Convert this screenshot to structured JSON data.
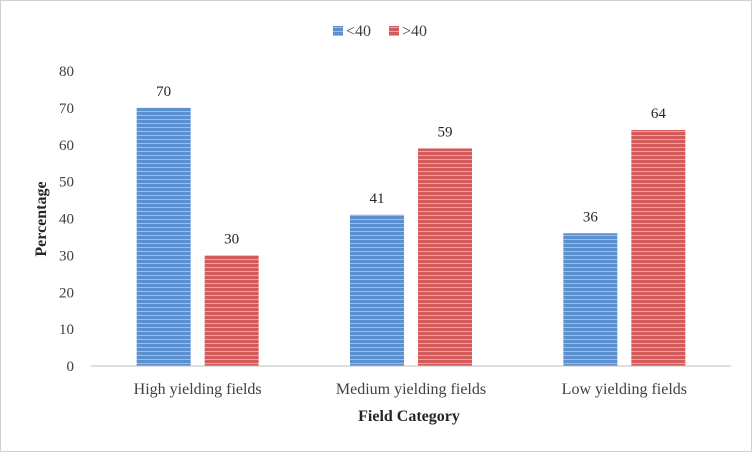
{
  "chart_data": {
    "type": "bar",
    "title": "",
    "xlabel": "Field Category",
    "ylabel": "Percentage",
    "categories": [
      "High yielding fields",
      "Medium yielding fields",
      "Low yielding fields"
    ],
    "series": [
      {
        "name": "<40",
        "values": [
          70,
          41,
          36
        ],
        "color": "#5b8fd0"
      },
      {
        "name": ">40",
        "values": [
          30,
          59,
          64
        ],
        "color": "#d35b5b"
      }
    ],
    "ylim": [
      0,
      80
    ],
    "yticks": [
      0,
      10,
      20,
      30,
      40,
      50,
      60,
      70,
      80
    ],
    "grid": false,
    "legend": "top-center"
  }
}
